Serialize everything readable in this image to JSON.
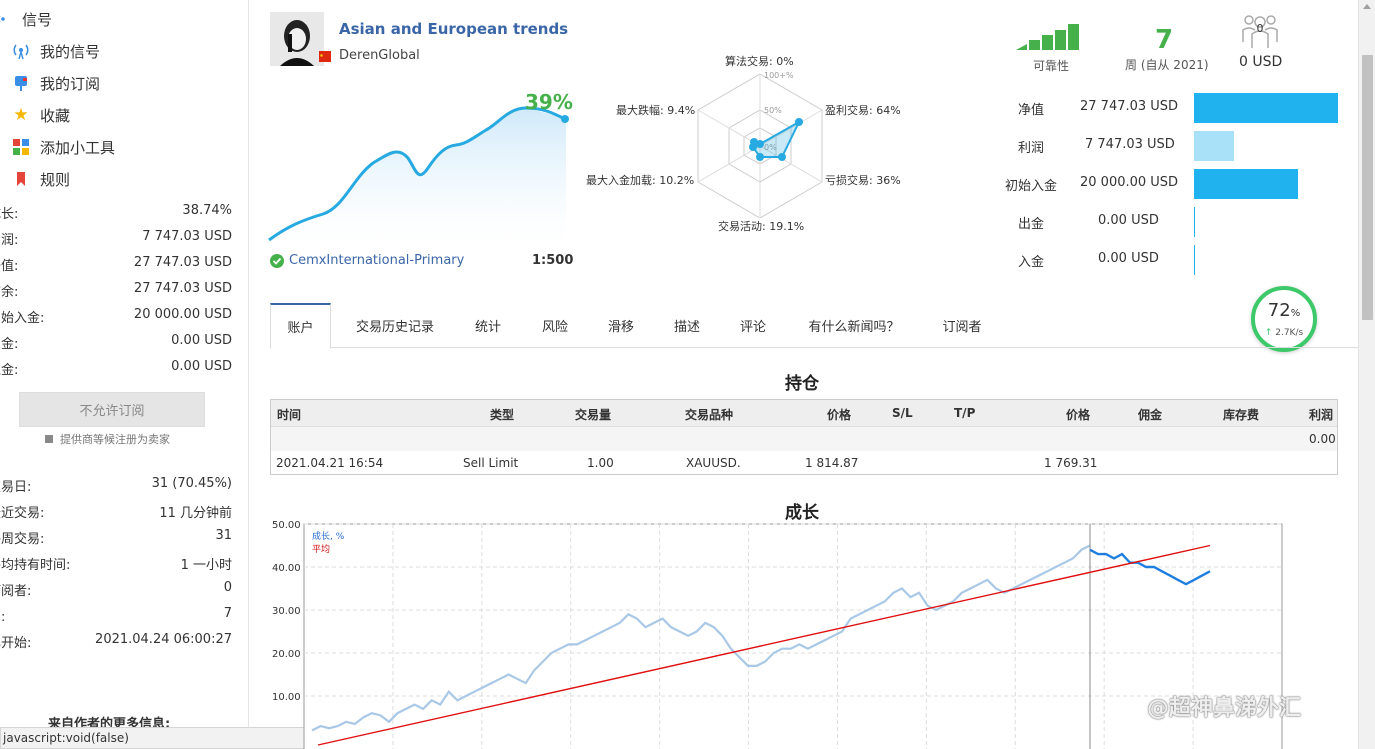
{
  "sidebar": {
    "nav": [
      {
        "label": "信号",
        "icon": "signal-icon"
      },
      {
        "label": "我的信号",
        "icon": "signal-icon"
      },
      {
        "label": "我的订阅",
        "icon": "mailbox-icon"
      },
      {
        "label": "收藏",
        "icon": "star-icon"
      },
      {
        "label": "添加小工具",
        "icon": "widgets-icon"
      },
      {
        "label": "规则",
        "icon": "bookmark-icon"
      }
    ],
    "stats": [
      {
        "label": "成长:",
        "value": "38.74%"
      },
      {
        "label": "利润:",
        "value": "7 747.03 USD"
      },
      {
        "label": "净值:",
        "value": "27 747.03 USD"
      },
      {
        "label": "结余:",
        "value": "27 747.03 USD"
      },
      {
        "label": "初始入金:",
        "value": "20 000.00 USD"
      },
      {
        "label": "出金:",
        "value": "0.00 USD"
      },
      {
        "label": "入金:",
        "value": "0.00 USD"
      }
    ],
    "subscribe_button": "不允许订阅",
    "subscribe_hint": "提供商等候注册为卖家",
    "stats2": [
      {
        "label": "交易日:",
        "value": "31 (70.45%)"
      },
      {
        "label": "最近交易:",
        "value": "11 几分钟前"
      },
      {
        "label": "每周交易:",
        "value": "31"
      },
      {
        "label": "平均持有时间:",
        "value": "1 一小时"
      },
      {
        "label": "订阅者:",
        "value": "0"
      },
      {
        "label": "周:",
        "value": "7"
      },
      {
        "label": "已开始:",
        "value": "2021.04.24 06:00:27"
      }
    ],
    "more_info": "来自作者的更多信息:",
    "status_text": "javascript:void(false)"
  },
  "header": {
    "title": "Asian and European trends",
    "author": "DerenGlobal",
    "growth": "39%",
    "broker": "CemxInternational-Primary",
    "leverage": "1:500"
  },
  "radar": {
    "labels": {
      "algo": "算法交易: 0%",
      "profit": "盈利交易: 64%",
      "loss": "亏损交易: 36%",
      "activity": "交易活动: 19.1%",
      "deposit_load": "最大入金加载: 10.2%",
      "drawdown": "最大跌幅: 9.4%"
    },
    "scale_100": "100+%",
    "scale_50": "50%",
    "scale_0": "0%"
  },
  "summary": {
    "reliability_label": "可靠性",
    "weeks": "7",
    "weeks_label": "周 (自从 2021)",
    "subscribers_count": "0",
    "subscribers_value": "0 USD"
  },
  "finance": [
    {
      "label": "净值",
      "value": "27 747.03 USD",
      "ratio": 1.0,
      "color": "#1fb2ef"
    },
    {
      "label": "利润",
      "value": "7 747.03 USD",
      "ratio": 0.28,
      "color": "#a9e2f8"
    },
    {
      "label": "初始入金",
      "value": "20 000.00 USD",
      "ratio": 0.72,
      "color": "#1fb2ef"
    },
    {
      "label": "出金",
      "value": "0.00 USD",
      "ratio": 0.0,
      "color": "#1fb2ef"
    },
    {
      "label": "入金",
      "value": "0.00 USD",
      "ratio": 0.0,
      "color": "#1fb2ef"
    }
  ],
  "tabs": [
    "账户",
    "交易历史记录",
    "统计",
    "风险",
    "滑移",
    "描述",
    "评论",
    "有什么新闻吗？",
    "订阅者"
  ],
  "positions": {
    "title": "持仓",
    "columns": [
      "时间",
      "类型",
      "交易量",
      "交易品种",
      "价格",
      "S/L",
      "T/P",
      "价格",
      "佣金",
      "库存费",
      "利润"
    ],
    "total_profit": "0.00",
    "rows": [
      {
        "time": "2021.04.21 16:54",
        "type": "Sell Limit",
        "volume": "1.00",
        "symbol": "XAUUSD.",
        "price": "1 814.87",
        "sl": "",
        "tp": "",
        "price2": "1 769.31",
        "commission": "",
        "swap": "",
        "profit": ""
      }
    ]
  },
  "speed": {
    "percent": "72",
    "unit": "%",
    "rate": "2.7K/s"
  },
  "watermark": "@超神鼻涕外汇",
  "chart_data": {
    "type": "line",
    "title": "成长",
    "legend": [
      "成长, %",
      "平均"
    ],
    "ylim": [
      0,
      50
    ],
    "yticks": [
      "50.00",
      "40.00",
      "30.00",
      "20.00",
      "10.00"
    ],
    "series": [
      {
        "name": "成长, %",
        "values": [
          2,
          3,
          2.5,
          3,
          4,
          3.5,
          5,
          6,
          5.5,
          4,
          6,
          7,
          8,
          7,
          9,
          8,
          11,
          9,
          10,
          11,
          12,
          13,
          14,
          15,
          14,
          13,
          16,
          18,
          20,
          21,
          22,
          22,
          23,
          24,
          25,
          26,
          27,
          29,
          28,
          26,
          27,
          28,
          26,
          25,
          24,
          25,
          27,
          26,
          24,
          21,
          19,
          17,
          17,
          18,
          20,
          21,
          21,
          22,
          21,
          22,
          23,
          24,
          25,
          28,
          29,
          30,
          31,
          32,
          34,
          35,
          33,
          34,
          31,
          30,
          31,
          32,
          34,
          35,
          36,
          37,
          35,
          34,
          35,
          36,
          37,
          38,
          39,
          40,
          41,
          42,
          44,
          45
        ]
      },
      {
        "name": "成长, % (recent)",
        "values": [
          44,
          43,
          43,
          42,
          43,
          41,
          41,
          40,
          40,
          39,
          38,
          37,
          36,
          37,
          38,
          39
        ]
      },
      {
        "name": "平均",
        "values": [
          0,
          45
        ]
      }
    ]
  }
}
